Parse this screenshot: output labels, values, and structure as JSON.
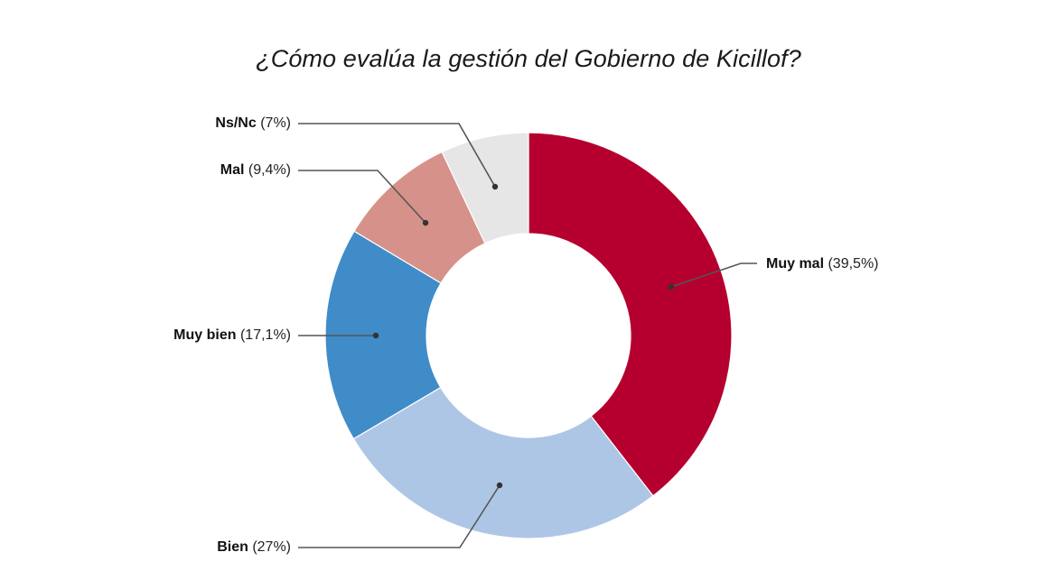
{
  "title": "¿Cómo evalúa la gestión del Gobierno de Kicillof?",
  "chart_data": {
    "type": "pie",
    "variant": "donut",
    "title": "¿Cómo evalúa la gestión del Gobierno de Kicillof?",
    "order": "clockwise from top",
    "categories": [
      "Muy mal",
      "Bien",
      "Muy bien",
      "Mal",
      "Ns/Nc"
    ],
    "values": [
      39.5,
      27,
      17.1,
      9.4,
      7
    ],
    "unit": "%",
    "colors": [
      "#b5002f",
      "#aec6e6",
      "#3f8cc9",
      "#d6918a",
      "#e6e6e6"
    ],
    "labels": [
      {
        "name": "Muy mal",
        "pct": "(39,5%)"
      },
      {
        "name": "Bien",
        "pct": "(27%)"
      },
      {
        "name": "Muy bien",
        "pct": "(17,1%)"
      },
      {
        "name": "Mal",
        "pct": "(9,4%)"
      },
      {
        "name": "Ns/Nc",
        "pct": "(7%)"
      }
    ],
    "legend": "callout labels with leader lines"
  },
  "labels": {
    "muy_mal": {
      "name": "Muy mal",
      "pct": "(39,5%)"
    },
    "bien": {
      "name": "Bien",
      "pct": "(27%)"
    },
    "muy_bien": {
      "name": "Muy bien",
      "pct": "(17,1%)"
    },
    "mal": {
      "name": "Mal",
      "pct": "(9,4%)"
    },
    "nsnc": {
      "name": "Ns/Nc",
      "pct": "(7%)"
    }
  }
}
